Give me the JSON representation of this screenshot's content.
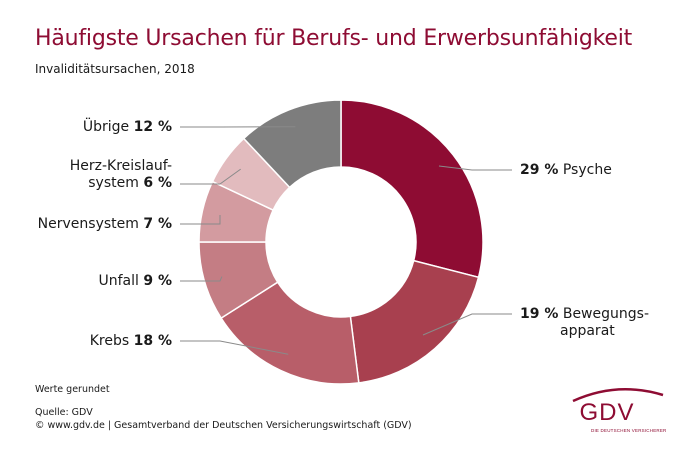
{
  "chart_data": {
    "type": "pie",
    "donut": true,
    "title": "Häufigste Ursachen für Berufs- und Erwerbsunfähigkeit",
    "subtitle": "Invaliditätsursachen, 2018",
    "slices": [
      {
        "label": "Psyche",
        "value": 29,
        "value_text": "29 %",
        "color": "#8e0c33"
      },
      {
        "label": "Bewegungs-apparat",
        "value": 19,
        "value_text": "19 %",
        "color": "#a8404f"
      },
      {
        "label": "Krebs",
        "value": 18,
        "value_text": "18 %",
        "color": "#b85e69"
      },
      {
        "label": "Unfall",
        "value": 9,
        "value_text": "9 %",
        "color": "#c47d84"
      },
      {
        "label": "Nervensystem",
        "value": 7,
        "value_text": "7 %",
        "color": "#d39ba0"
      },
      {
        "label": "Herz-Kreislauf-system",
        "value": 6,
        "value_text": "6 %",
        "color": "#e2bbbe"
      },
      {
        "label": "Übrige",
        "value": 12,
        "value_text": "12 %",
        "color": "#7d7d7d"
      }
    ]
  },
  "labels": {
    "psyche": {
      "value": "29 %",
      "text": "Psyche"
    },
    "bewegung": {
      "value": "19 %",
      "line1": "Bewegungs-",
      "line2": "apparat"
    },
    "krebs": {
      "text": "Krebs",
      "value": "18 %"
    },
    "unfall": {
      "text": "Unfall",
      "value": "9 %"
    },
    "nerven": {
      "text": "Nervensystem",
      "value": "7 %"
    },
    "herz": {
      "line1": "Herz-Kreislauf-",
      "line2": "system",
      "value": "6 %"
    },
    "uebrige": {
      "text": "Übrige",
      "value": "12 %"
    }
  },
  "footer": {
    "note": "Werte gerundet",
    "source": "Quelle: GDV",
    "copyright": "© www.gdv.de | Gesamtverband der Deutschen Versicherungswirtschaft (GDV)"
  },
  "logo": {
    "text": "GDV",
    "subtext": "DIE DEUTSCHEN VERSICHERER"
  }
}
